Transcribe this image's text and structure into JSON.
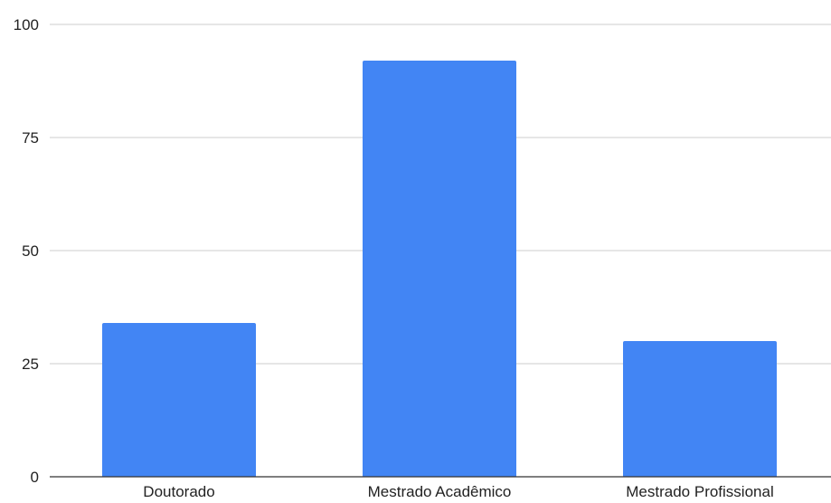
{
  "chart_data": {
    "type": "bar",
    "categories": [
      "Doutorado",
      "Mestrado Acadêmico",
      "Mestrado Profissional"
    ],
    "values": [
      34,
      92,
      30
    ],
    "ylim": [
      0,
      100
    ],
    "yticks": [
      0,
      25,
      50,
      75,
      100
    ],
    "ytick_labels": [
      "0",
      "25",
      "50",
      "75",
      "100"
    ],
    "grid": true,
    "legend": "none",
    "bar_color": "#4285f4"
  }
}
